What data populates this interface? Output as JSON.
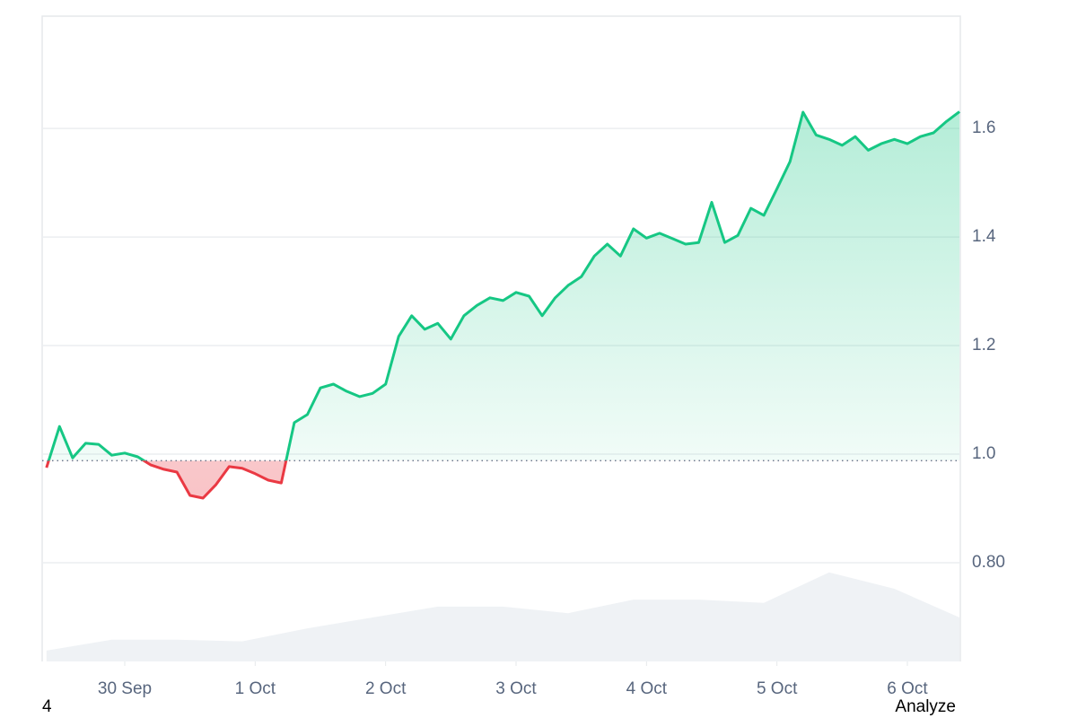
{
  "chart_data": {
    "type": "price-area",
    "xlim": [
      -0.633,
      6.406
    ],
    "xticks": [
      {
        "value": 0,
        "label": "30 Sep"
      },
      {
        "value": 1,
        "label": "1 Oct"
      },
      {
        "value": 2,
        "label": "2 Oct"
      },
      {
        "value": 3,
        "label": "3 Oct"
      },
      {
        "value": 4,
        "label": "4 Oct"
      },
      {
        "value": 5,
        "label": "5 Oct"
      },
      {
        "value": 6,
        "label": "6 Oct"
      }
    ],
    "ylim": [
      0.618,
      1.807
    ],
    "yticks": [
      {
        "value": 0.8,
        "label": "0.80"
      },
      {
        "value": 1,
        "label": "1.0"
      },
      1.2,
      1.4,
      1.6
    ],
    "grid": true,
    "baseline": 0.988,
    "series": [
      {
        "color_up": "#16c784",
        "color_down": "#ea3943",
        "x": [
          -0.6,
          -0.5,
          -0.4,
          -0.3,
          -0.2,
          -0.1,
          0,
          0.1,
          0.2,
          0.3,
          0.4,
          0.5,
          0.6,
          0.7,
          0.8,
          0.9,
          1,
          1.1,
          1.2,
          1.3,
          1.4,
          1.5,
          1.6,
          1.7,
          1.8,
          1.9,
          2,
          2.1,
          2.2,
          2.3,
          2.4,
          2.5,
          2.6,
          2.7,
          2.8,
          2.9,
          3,
          3.1,
          3.2,
          3.3,
          3.4,
          3.5,
          3.6,
          3.7,
          3.8,
          3.9,
          4,
          4.1,
          4.2,
          4.3,
          4.4,
          4.5,
          4.6,
          4.7,
          4.8,
          4.9,
          5,
          5.1,
          5.2,
          5.3,
          5.4,
          5.5,
          5.6,
          5.7,
          5.8,
          5.9,
          6,
          6.1,
          6.2,
          6.3,
          6.4
        ],
        "values": [
          0.975,
          1.051,
          0.993,
          1.02,
          1.018,
          0.998,
          1.002,
          0.995,
          0.98,
          0.972,
          0.967,
          0.924,
          0.919,
          0.944,
          0.977,
          0.974,
          0.964,
          0.952,
          0.947,
          1.058,
          1.073,
          1.122,
          1.129,
          1.116,
          1.106,
          1.112,
          1.129,
          1.217,
          1.255,
          1.23,
          1.241,
          1.212,
          1.255,
          1.274,
          1.288,
          1.283,
          1.298,
          1.291,
          1.255,
          1.288,
          1.311,
          1.327,
          1.365,
          1.387,
          1.365,
          1.415,
          1.398,
          1.407,
          1.397,
          1.387,
          1.39,
          1.464,
          1.39,
          1.403,
          1.453,
          1.44,
          1.489,
          1.539,
          1.63,
          1.588,
          1.58,
          1.569,
          1.585,
          1.56,
          1.572,
          1.58,
          1.572,
          1.585,
          1.592,
          1.613,
          1.631
        ]
      },
      {
        "type": "volume-area",
        "color": "#eff2f5",
        "x": [
          -0.6,
          -0.1,
          0.4,
          0.9,
          1.4,
          1.9,
          2.4,
          2.9,
          3.4,
          3.9,
          4.4,
          4.9,
          5.4,
          5.9,
          6.4
        ],
        "values": [
          0.638,
          0.658,
          0.658,
          0.655,
          0.679,
          0.699,
          0.719,
          0.719,
          0.707,
          0.732,
          0.732,
          0.726,
          0.782,
          0.752,
          0.699
        ]
      }
    ]
  },
  "footer_left": "4",
  "footer_right": "Analyze"
}
